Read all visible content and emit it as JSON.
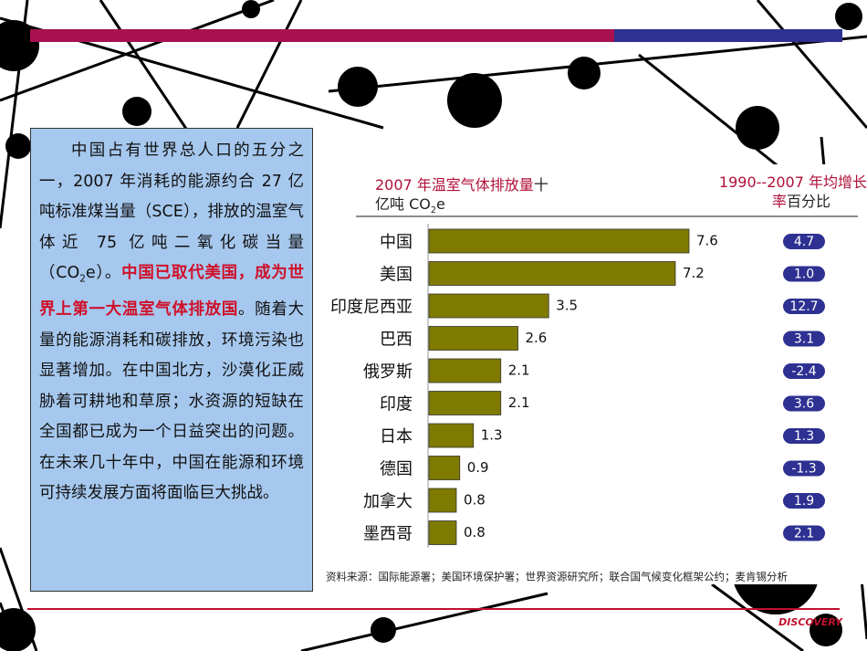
{
  "text_box": {
    "parts": [
      "中国占有世界总人口的五分之一，2007 年消耗的能源约合 27 亿吨标准煤当量（SCE），排放的温室气体近 75 亿吨二氧化碳当量（CO",
      "2",
      "e）。",
      "中国已取代美国，成为世界上第一大温室气体排放国",
      "。随着大量的能源消耗和碳排放，环境污染也显著增加。在中国北方，沙漠化正威胁着可耕地和草原；水资源的短缺在全国都已成为一个日益突出的问题。在未来几十年中，中国在能源和环境可持续发展方面将面临巨大挑战。"
    ]
  },
  "chart_data": {
    "type": "hbar",
    "title": "2007 年温室气体排放量",
    "unit": [
      "十亿吨 CO",
      "2",
      "e"
    ],
    "categories": [
      "中国",
      "美国",
      "印度尼西亚",
      "巴西",
      "俄罗斯",
      "印度",
      "日本",
      "德国",
      "加拿大",
      "墨西哥"
    ],
    "values": [
      7.6,
      7.2,
      3.5,
      2.6,
      2.1,
      2.1,
      1.3,
      0.9,
      0.8,
      0.8
    ],
    "color": "#7f7a00",
    "growth": {
      "title": "1990--2007 年均增长",
      "title2": "率",
      "unit": "百分比",
      "color": "#2e3192",
      "values": [
        4.7,
        1.0,
        12.7,
        3.1,
        -2.4,
        3.6,
        1.3,
        -1.3,
        1.9,
        2.1
      ],
      "value_labels": [
        "4.7",
        "1.0",
        "12.7",
        "3.1",
        "-2.4",
        "3.6",
        "1.3",
        "-1.3",
        "1.9",
        "2.1"
      ]
    },
    "source": "资料来源：国际能源署；美国环境保护署；世界资源研究所；联合国气候变化框架公约；麦肯锡分析"
  },
  "logo": "DISCOVERY"
}
